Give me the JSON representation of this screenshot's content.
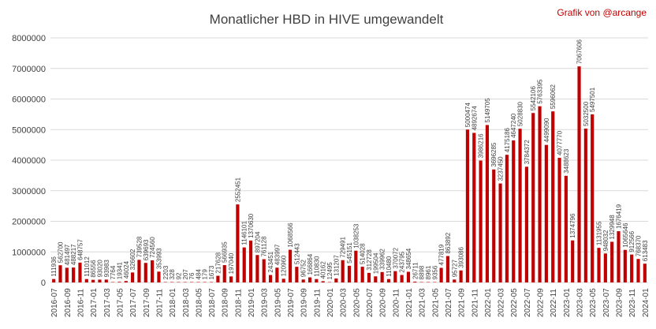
{
  "chart_data": {
    "type": "bar",
    "title": "Monatlicher HBD in HIVE umgewandelt",
    "credit": "Grafik von @arcange",
    "xlabel": "",
    "ylabel": "",
    "ylim": [
      0,
      8000000
    ],
    "yticks": [
      "0",
      "1000000",
      "2000000",
      "3000000",
      "4000000",
      "5000000",
      "6000000",
      "7000000",
      "8000000"
    ],
    "ytick_values": [
      0,
      1000000,
      2000000,
      3000000,
      4000000,
      5000000,
      6000000,
      7000000,
      8000000
    ],
    "grid": true,
    "bar_color": "#c00000",
    "categories": [
      "2016-07",
      "2016-08",
      "2016-09",
      "2016-10",
      "2016-11",
      "2016-12",
      "2017-01",
      "2017-02",
      "2017-03",
      "2017-04",
      "2017-05",
      "2017-06",
      "2017-07",
      "2017-08",
      "2017-09",
      "2017-10",
      "2017-11",
      "2017-12",
      "2018-01",
      "2018-02",
      "2018-03",
      "2018-04",
      "2018-05",
      "2018-06",
      "2018-07",
      "2018-08",
      "2018-09",
      "2018-10",
      "2018-11",
      "2018-12",
      "2019-01",
      "2019-02",
      "2019-03",
      "2019-04",
      "2019-05",
      "2019-06",
      "2019-07",
      "2019-08",
      "2019-09",
      "2019-10",
      "2019-11",
      "2019-12",
      "2020-01",
      "2020-02",
      "2020-03",
      "2020-04",
      "2020-05",
      "2020-06",
      "2020-07",
      "2020-08",
      "2020-09",
      "2020-10",
      "2020-11",
      "2020-12",
      "2021-01",
      "2021-02",
      "2021-03",
      "2021-04",
      "2021-05",
      "2021-06",
      "2021-07",
      "2021-08",
      "2021-09",
      "2021-10",
      "2021-11",
      "2021-12",
      "2022-01",
      "2022-02",
      "2022-03",
      "2022-04",
      "2022-05",
      "2022-06",
      "2022-07",
      "2022-08",
      "2022-09",
      "2022-10",
      "2022-11",
      "2022-12",
      "2023-01",
      "2023-02",
      "2023-03",
      "2023-04",
      "2023-05",
      "2023-06",
      "2023-07",
      "2023-08",
      "2023-09",
      "2023-10",
      "2023-11",
      "2023-12",
      "2024-01"
    ],
    "xtick_labels": [
      "2016-07",
      "2016-09",
      "2016-11",
      "2017-01",
      "2017-03",
      "2017-05",
      "2017-07",
      "2017-09",
      "2017-11",
      "2018-01",
      "2018-03",
      "2018-05",
      "2018-07",
      "2018-09",
      "2018-11",
      "2019-01",
      "2019-03",
      "2019-05",
      "2019-07",
      "2019-09",
      "2019-11",
      "2020-01",
      "2020-03",
      "2020-05",
      "2020-07",
      "2020-09",
      "2020-11",
      "2021-01",
      "2021-03",
      "2021-05",
      "2021-07",
      "2021-09",
      "2021-11",
      "2022-01",
      "2022-03",
      "2022-05",
      "2022-07",
      "2022-09",
      "2022-11",
      "2023-01",
      "2023-03",
      "2023-05",
      "2023-07",
      "2023-09",
      "2023-11",
      "2024-01"
    ],
    "values": [
      111936,
      562700,
      481497,
      488217,
      648757,
      111012,
      86556,
      93020,
      93983,
      7764,
      19341,
      46024,
      326602,
      739528,
      639693,
      724560,
      353993,
      2203,
      328,
      92,
      207,
      76,
      484,
      179,
      1673,
      217628,
      566935,
      197040,
      2552451,
      1146101,
      1370630,
      897204,
      761128,
      243451,
      483997,
      120960,
      1068566,
      512443,
      96752,
      166864,
      110830,
      40162,
      12495,
      131207,
      729491,
      545151,
      1038253,
      514028,
      312728,
      199504,
      339962,
      110480,
      370072,
      243795,
      348654,
      26711,
      8898,
      8961,
      9356,
      477819,
      863892,
      95727,
      393086,
      5000474,
      4892674,
      3986216,
      5149705,
      3696285,
      3237450,
      4175186,
      4647240,
      5028830,
      3784372,
      5542106,
      5763395,
      4499090,
      5596062,
      4077770,
      3488623,
      1374796,
      7067606,
      5032500,
      5497501,
      1131955,
      948032,
      1329948,
      1676419,
      1065646,
      912566,
      768370,
      613483
    ]
  }
}
